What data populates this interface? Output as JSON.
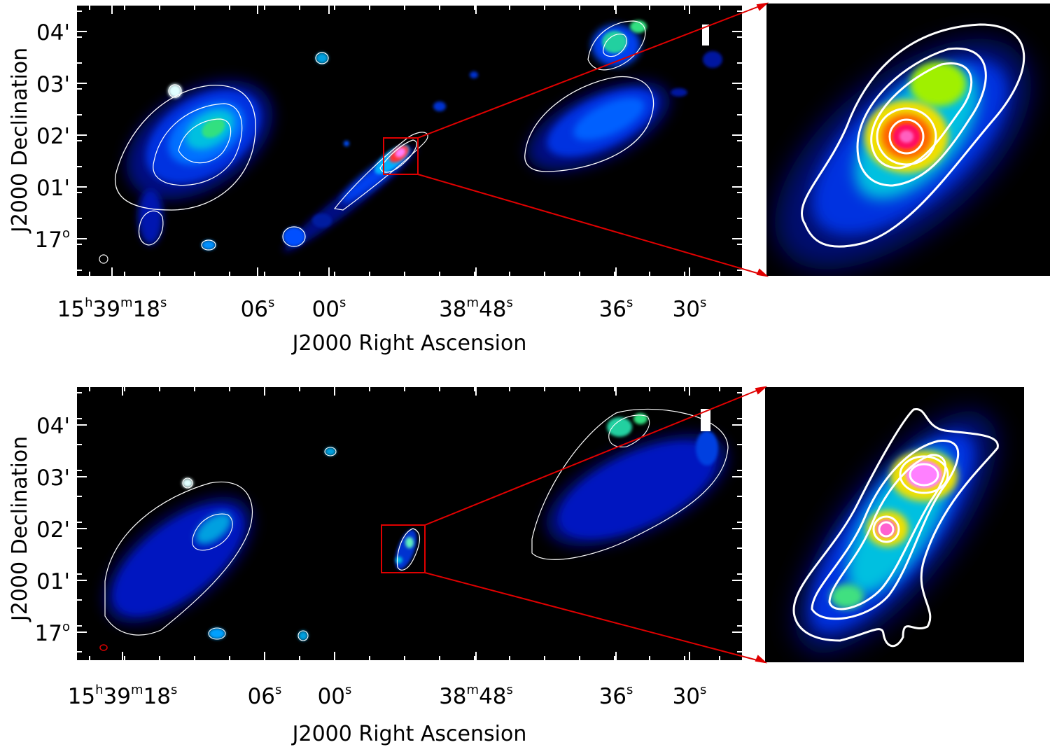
{
  "figure": {
    "colors": {
      "background": "#000000",
      "contour": "#ffffff",
      "zoom_box": "#e00000",
      "beam_marker": "#e00000"
    },
    "palette": [
      "#000000",
      "#000a60",
      "#0018d8",
      "#0050ff",
      "#00a0ff",
      "#00e0e0",
      "#30e080",
      "#a0f000",
      "#f0e000",
      "#ff8000",
      "#ff2000",
      "#ff30a0",
      "#ff80ff"
    ]
  },
  "panels": [
    {
      "name": "top",
      "x_axis": {
        "title": "J2000 Right Ascension",
        "ticks": [
          {
            "parts": [
              [
                "15",
                ""
              ],
              [
                "h",
                "sup"
              ],
              [
                "39",
                ""
              ],
              [
                "m",
                "sup"
              ],
              [
                "18",
                ""
              ],
              [
                "s",
                "sup"
              ]
            ]
          },
          {
            "parts": [
              [
                "06",
                ""
              ],
              [
                "s",
                "sup"
              ]
            ]
          },
          {
            "parts": [
              [
                "00",
                ""
              ],
              [
                "s",
                "sup"
              ]
            ]
          },
          {
            "parts": [
              [
                "38",
                ""
              ],
              [
                "m",
                "sup"
              ],
              [
                "48",
                ""
              ],
              [
                "s",
                "sup"
              ]
            ]
          },
          {
            "parts": [
              [
                "36",
                ""
              ],
              [
                "s",
                "sup"
              ]
            ]
          },
          {
            "parts": [
              [
                "30",
                ""
              ],
              [
                "s",
                "sup"
              ]
            ]
          }
        ]
      },
      "y_axis": {
        "title": "J2000 Declination",
        "ticks": [
          {
            "parts": [
              [
                "04'",
                ""
              ]
            ]
          },
          {
            "parts": [
              [
                "03'",
                ""
              ]
            ]
          },
          {
            "parts": [
              [
                "02'",
                ""
              ]
            ]
          },
          {
            "parts": [
              [
                "01'",
                ""
              ]
            ]
          },
          {
            "parts": [
              [
                "17",
                ""
              ],
              [
                "o",
                "sup"
              ]
            ]
          }
        ]
      }
    },
    {
      "name": "bottom",
      "x_axis": {
        "title": "J2000 Right Ascension",
        "ticks": [
          {
            "parts": [
              [
                "15",
                ""
              ],
              [
                "h",
                "sup"
              ],
              [
                "39",
                ""
              ],
              [
                "m",
                "sup"
              ],
              [
                "18",
                ""
              ],
              [
                "s",
                "sup"
              ]
            ]
          },
          {
            "parts": [
              [
                "06",
                ""
              ],
              [
                "s",
                "sup"
              ]
            ]
          },
          {
            "parts": [
              [
                "00",
                ""
              ],
              [
                "s",
                "sup"
              ]
            ]
          },
          {
            "parts": [
              [
                "38",
                ""
              ],
              [
                "m",
                "sup"
              ],
              [
                "48",
                ""
              ],
              [
                "s",
                "sup"
              ]
            ]
          },
          {
            "parts": [
              [
                "36",
                ""
              ],
              [
                "s",
                "sup"
              ]
            ]
          },
          {
            "parts": [
              [
                "30",
                ""
              ],
              [
                "s",
                "sup"
              ]
            ]
          }
        ]
      },
      "y_axis": {
        "title": "J2000 Declination",
        "ticks": [
          {
            "parts": [
              [
                "04'",
                ""
              ]
            ]
          },
          {
            "parts": [
              [
                "03'",
                ""
              ]
            ]
          },
          {
            "parts": [
              [
                "02'",
                ""
              ]
            ]
          },
          {
            "parts": [
              [
                "01'",
                ""
              ]
            ]
          },
          {
            "parts": [
              [
                "17",
                ""
              ],
              [
                "o",
                "sup"
              ]
            ]
          }
        ]
      }
    }
  ]
}
